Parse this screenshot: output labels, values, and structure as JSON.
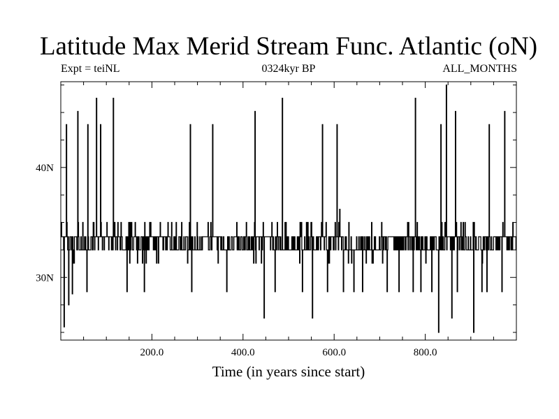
{
  "chart_data": {
    "type": "line",
    "title": "Latitude Max Merid Stream Func. Atlantic (oN)",
    "subtitle_left": "Expt = teiNL",
    "subtitle_center": "0324kyr BP",
    "subtitle_right": "ALL_MONTHS",
    "xlabel": "Time (in years since start)",
    "ylabel": "",
    "xlim": [
      0,
      1000
    ],
    "ylim": [
      24.3,
      47.8
    ],
    "x_ticks": [
      {
        "value": 200,
        "label": "200.0"
      },
      {
        "value": 400,
        "label": "400.0"
      },
      {
        "value": 600,
        "label": "600.0"
      },
      {
        "value": 800,
        "label": "800.0"
      }
    ],
    "y_ticks": [
      {
        "value": 30,
        "label": "30N"
      },
      {
        "value": 40,
        "label": "40N"
      }
    ],
    "grid": false,
    "legend": "none",
    "baseline": [
      {
        "start": 0,
        "end": 40,
        "value": 33.7
      },
      {
        "start": 40,
        "end": 70,
        "value": 32.5
      },
      {
        "start": 70,
        "end": 130,
        "value": 33.7
      },
      {
        "start": 130,
        "end": 160,
        "value": 32.5
      },
      {
        "start": 160,
        "end": 240,
        "value": 33.7
      },
      {
        "start": 240,
        "end": 310,
        "value": 32.5
      },
      {
        "start": 310,
        "end": 350,
        "value": 33.7
      },
      {
        "start": 350,
        "end": 420,
        "value": 32.5
      },
      {
        "start": 420,
        "end": 480,
        "value": 33.7
      },
      {
        "start": 480,
        "end": 560,
        "value": 32.5
      },
      {
        "start": 560,
        "end": 620,
        "value": 33.7
      },
      {
        "start": 620,
        "end": 700,
        "value": 32.5
      },
      {
        "start": 700,
        "end": 770,
        "value": 33.7
      },
      {
        "start": 770,
        "end": 830,
        "value": 32.5
      },
      {
        "start": 830,
        "end": 880,
        "value": 33.7
      },
      {
        "start": 880,
        "end": 950,
        "value": 32.5
      },
      {
        "start": 950,
        "end": 1000,
        "value": 33.7
      }
    ],
    "spikes": [
      {
        "x": 7,
        "y": 25.5
      },
      {
        "x": 12,
        "y": 43.9
      },
      {
        "x": 17,
        "y": 27.5
      },
      {
        "x": 25,
        "y": 28.5
      },
      {
        "x": 37,
        "y": 45.1
      },
      {
        "x": 57,
        "y": 28.7
      },
      {
        "x": 59,
        "y": 43.9
      },
      {
        "x": 78,
        "y": 46.3
      },
      {
        "x": 87,
        "y": 43.9
      },
      {
        "x": 115,
        "y": 46.3
      },
      {
        "x": 145,
        "y": 28.7
      },
      {
        "x": 152,
        "y": 35.0
      },
      {
        "x": 183,
        "y": 28.7
      },
      {
        "x": 284,
        "y": 43.9
      },
      {
        "x": 287,
        "y": 28.7
      },
      {
        "x": 333,
        "y": 43.9
      },
      {
        "x": 364,
        "y": 28.7
      },
      {
        "x": 426,
        "y": 45.1
      },
      {
        "x": 446,
        "y": 26.3
      },
      {
        "x": 470,
        "y": 28.7
      },
      {
        "x": 486,
        "y": 46.3
      },
      {
        "x": 494,
        "y": 35.0
      },
      {
        "x": 530,
        "y": 28.7
      },
      {
        "x": 552,
        "y": 26.3
      },
      {
        "x": 574,
        "y": 43.9
      },
      {
        "x": 585,
        "y": 28.7
      },
      {
        "x": 606,
        "y": 43.9
      },
      {
        "x": 612,
        "y": 36.2
      },
      {
        "x": 620,
        "y": 28.7
      },
      {
        "x": 643,
        "y": 28.7
      },
      {
        "x": 662,
        "y": 28.7
      },
      {
        "x": 716,
        "y": 28.7
      },
      {
        "x": 742,
        "y": 28.7
      },
      {
        "x": 773,
        "y": 28.7
      },
      {
        "x": 778,
        "y": 46.3
      },
      {
        "x": 790,
        "y": 28.7
      },
      {
        "x": 814,
        "y": 28.7
      },
      {
        "x": 829,
        "y": 25.0
      },
      {
        "x": 834,
        "y": 43.9
      },
      {
        "x": 846,
        "y": 47.5
      },
      {
        "x": 858,
        "y": 26.3
      },
      {
        "x": 866,
        "y": 45.1
      },
      {
        "x": 870,
        "y": 28.7
      },
      {
        "x": 878,
        "y": 35.0
      },
      {
        "x": 906,
        "y": 25.0
      },
      {
        "x": 924,
        "y": 28.7
      },
      {
        "x": 935,
        "y": 28.7
      },
      {
        "x": 940,
        "y": 43.9
      },
      {
        "x": 968,
        "y": 28.7
      },
      {
        "x": 974,
        "y": 45.1
      },
      {
        "x": 992,
        "y": 35.0
      }
    ]
  }
}
